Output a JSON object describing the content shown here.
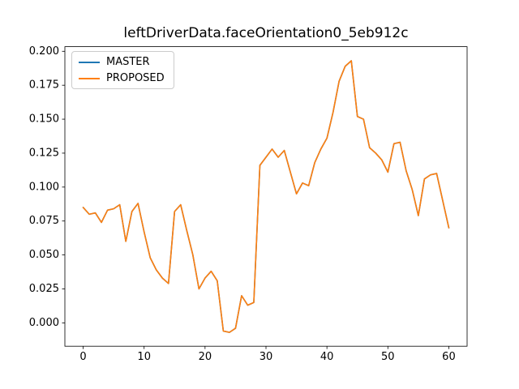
{
  "figure": {
    "title": "leftDriverData.faceOrientation0_5eb912c"
  },
  "legend": {
    "position": "upper-left",
    "items": [
      {
        "label": "MASTER",
        "color": "#1f77b4"
      },
      {
        "label": "PROPOSED",
        "color": "#ff7f0e"
      }
    ]
  },
  "chart_data": {
    "type": "line",
    "title": "leftDriverData.faceOrientation0_5eb912c",
    "xlabel": "",
    "ylabel": "",
    "grid": false,
    "legend_position": "upper-left",
    "x": {
      "min": 0,
      "max": 60,
      "step": 1
    },
    "x_ticks": [
      0,
      10,
      20,
      30,
      40,
      50,
      60
    ],
    "y_ticks": [
      0.0,
      0.025,
      0.05,
      0.075,
      0.1,
      0.125,
      0.15,
      0.175,
      0.2
    ],
    "x_tick_decimals": 0,
    "y_tick_decimals": 3,
    "xlim": [
      -3.0,
      63.0
    ],
    "ylim": [
      -0.0172,
      0.2034
    ],
    "note": "MASTER and PROPOSED series overlap exactly; PROPOSED (orange) is drawn on top of MASTER (blue).",
    "series": [
      {
        "name": "MASTER",
        "color": "#1f77b4",
        "values": [
          0.085,
          0.08,
          0.081,
          0.074,
          0.083,
          0.084,
          0.087,
          0.06,
          0.082,
          0.088,
          0.067,
          0.048,
          0.039,
          0.033,
          0.029,
          0.082,
          0.087,
          0.068,
          0.05,
          0.025,
          0.033,
          0.038,
          0.031,
          -0.006,
          -0.007,
          -0.004,
          0.02,
          0.013,
          0.015,
          0.116,
          0.122,
          0.128,
          0.122,
          0.127,
          0.111,
          0.095,
          0.103,
          0.101,
          0.118,
          0.128,
          0.136,
          0.155,
          0.178,
          0.189,
          0.193,
          0.152,
          0.15,
          0.129,
          0.125,
          0.12,
          0.111,
          0.132,
          0.133,
          0.112,
          0.098,
          0.079,
          0.106,
          0.109,
          0.11,
          0.09,
          0.07
        ]
      },
      {
        "name": "PROPOSED",
        "color": "#ff7f0e",
        "values": [
          0.085,
          0.08,
          0.081,
          0.074,
          0.083,
          0.084,
          0.087,
          0.06,
          0.082,
          0.088,
          0.067,
          0.048,
          0.039,
          0.033,
          0.029,
          0.082,
          0.087,
          0.068,
          0.05,
          0.025,
          0.033,
          0.038,
          0.031,
          -0.006,
          -0.007,
          -0.004,
          0.02,
          0.013,
          0.015,
          0.116,
          0.122,
          0.128,
          0.122,
          0.127,
          0.111,
          0.095,
          0.103,
          0.101,
          0.118,
          0.128,
          0.136,
          0.155,
          0.178,
          0.189,
          0.193,
          0.152,
          0.15,
          0.129,
          0.125,
          0.12,
          0.111,
          0.132,
          0.133,
          0.112,
          0.098,
          0.079,
          0.106,
          0.109,
          0.11,
          0.09,
          0.07
        ]
      }
    ]
  }
}
